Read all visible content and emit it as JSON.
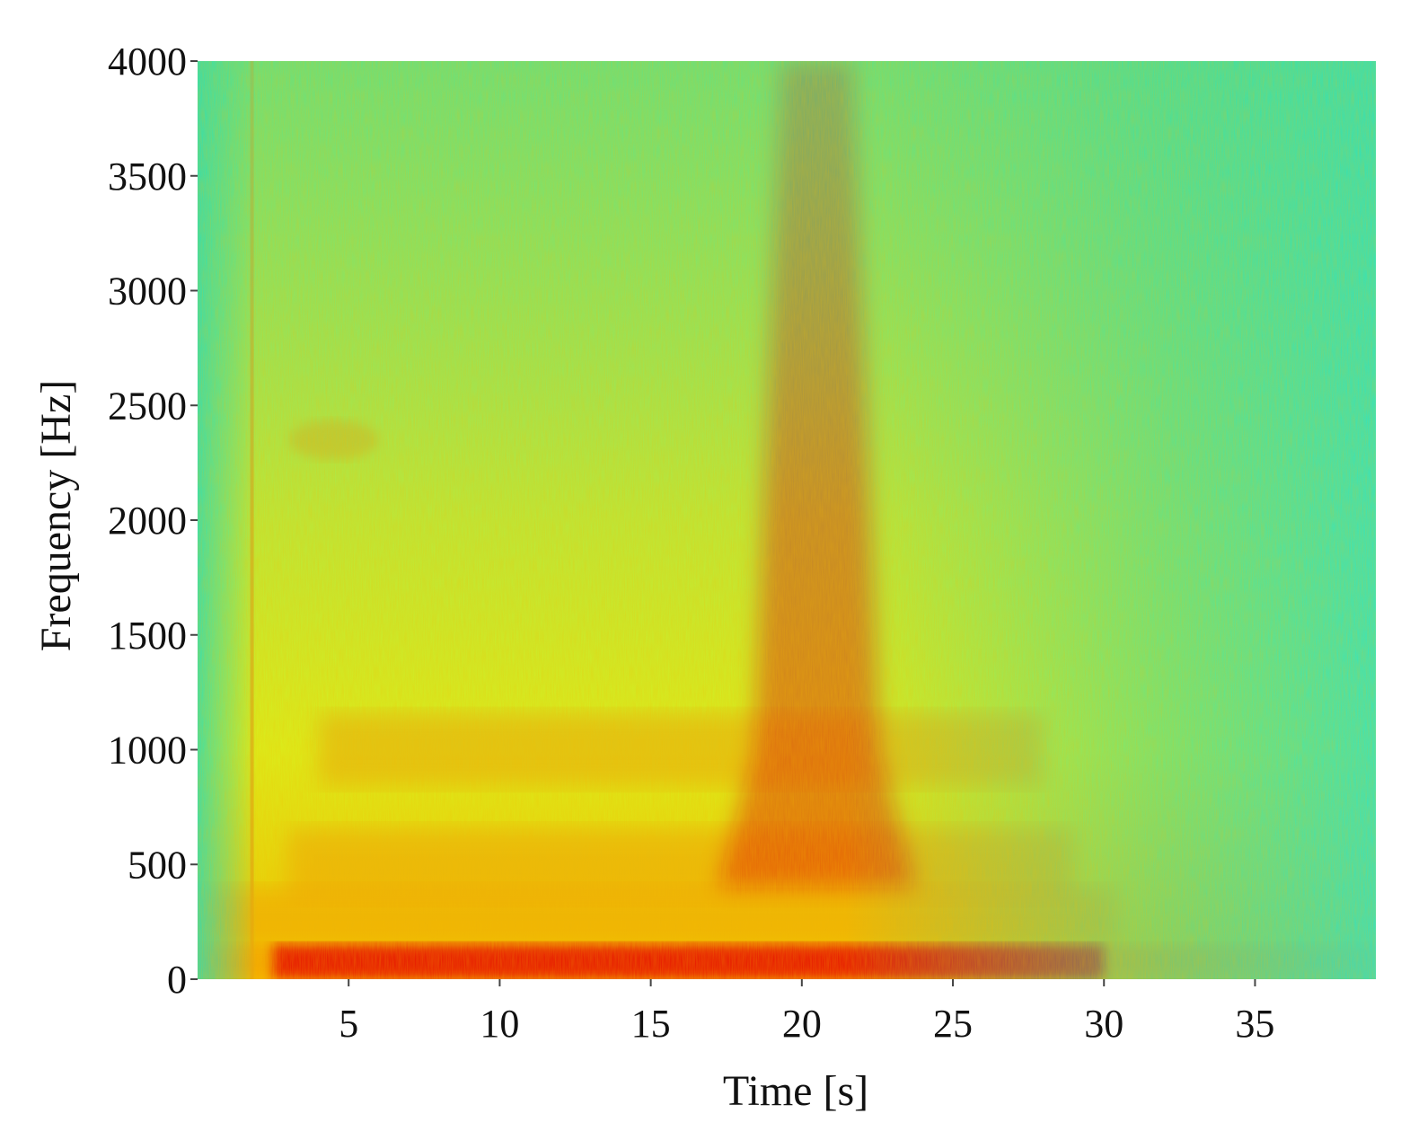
{
  "chart_data": {
    "type": "heatmap",
    "title": "",
    "xlabel": "Time [s]",
    "ylabel": "Frequency [Hz]",
    "xlim": [
      0,
      39
    ],
    "ylim": [
      0,
      4000
    ],
    "xticks": [
      5,
      10,
      15,
      20,
      25,
      30,
      35
    ],
    "yticks": [
      0,
      500,
      1000,
      1500,
      2000,
      2500,
      3000,
      3500,
      4000
    ],
    "xtick_labels": [
      "5",
      "10",
      "15",
      "20",
      "25",
      "30",
      "35"
    ],
    "ytick_labels": [
      "0",
      "500",
      "1000",
      "1500",
      "2000",
      "2500",
      "3000",
      "3500",
      "4000"
    ],
    "colormap": "jet",
    "colors": {
      "low": "#19e6d2",
      "mid_low": "#7de65a",
      "mid": "#f0f000",
      "mid_high": "#f6a000",
      "high": "#e81000"
    },
    "features": [
      {
        "kind": "broadband-band",
        "freq_range_hz": [
          0,
          150
        ],
        "time_range_s": [
          2.5,
          30
        ],
        "intensity": "high"
      },
      {
        "kind": "harmonic-band",
        "center_hz": 1000,
        "time_range_s": [
          4,
          28
        ],
        "intensity": "medium-high"
      },
      {
        "kind": "harmonic-band",
        "center_hz": 500,
        "time_range_s": [
          3,
          29
        ],
        "intensity": "medium-high"
      },
      {
        "kind": "vertical-burst",
        "center_time_s": 20.5,
        "freq_range_hz": [
          0,
          4000
        ],
        "intensity": "high"
      },
      {
        "kind": "narrow-impulse",
        "center_time_s": 1.8,
        "freq_range_hz": [
          0,
          4000
        ],
        "intensity": "medium"
      },
      {
        "kind": "patch",
        "center_time_s": 4.5,
        "center_hz": 2350,
        "intensity": "medium"
      }
    ]
  }
}
